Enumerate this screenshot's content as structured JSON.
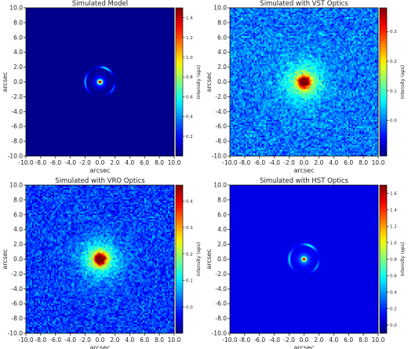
{
  "chart_data": [
    {
      "type": "heatmap",
      "title": "Simulated Model",
      "xlabel": "arcsec",
      "ylabel": "arcsec",
      "colorbar_label": "Intensity (eps)",
      "xlim": [
        -10,
        10
      ],
      "ylim": [
        -10,
        10
      ],
      "xticks": [
        "-10.0",
        "-8.0",
        "-6.0",
        "-4.0",
        "-2.0",
        "0.0",
        "2.0",
        "4.0",
        "6.0",
        "8.0",
        "10.0"
      ],
      "yticks": [
        "10.0",
        "8.0",
        "6.0",
        "4.0",
        "2.0",
        "0.0",
        "-2.0",
        "-4.0",
        "-6.0",
        "-8.0",
        "-10.0"
      ],
      "colorbar_range": [
        0,
        1.5
      ],
      "colorbar_ticks": [
        "1.4",
        "1.2",
        "1.0",
        "0.8",
        "0.6",
        "0.4",
        "0.2"
      ],
      "colorbar_values": [
        1.4,
        1.2,
        1.0,
        0.8,
        0.6,
        0.4,
        0.2
      ],
      "source": "lensed",
      "noise": 0.0,
      "background": 0.02
    },
    {
      "type": "heatmap",
      "title": "Simulated with VST Optics",
      "xlabel": "arcsec",
      "ylabel": "arcsec",
      "colorbar_label": "Intensity (eps)",
      "xlim": [
        -10,
        10
      ],
      "ylim": [
        -10,
        10
      ],
      "xticks": [
        "-10.0",
        "-8.0",
        "-6.0",
        "-4.0",
        "-2.0",
        "0.0",
        "2.0",
        "4.0",
        "6.0",
        "8.0",
        "10.0"
      ],
      "yticks": [
        "10.0",
        "8.0",
        "6.0",
        "4.0",
        "2.0",
        "0.0",
        "-2.0",
        "-4.0",
        "-6.0",
        "-8.0",
        "-10.0"
      ],
      "colorbar_range": [
        -0.12,
        0.38
      ],
      "colorbar_ticks": [
        "0.3",
        "0.2",
        "0.1",
        "0.0"
      ],
      "colorbar_values": [
        0.3,
        0.2,
        0.1,
        0.0
      ],
      "source": "blob",
      "noise": 0.04,
      "background": 0.0
    },
    {
      "type": "heatmap",
      "title": "Simulated with VRO Optics",
      "xlabel": "arcsec",
      "ylabel": "arcsec",
      "colorbar_label": "Intensity (eps)",
      "xlim": [
        -10,
        10
      ],
      "ylim": [
        -10,
        10
      ],
      "xticks": [
        "-10.0",
        "-8.0",
        "-6.0",
        "-4.0",
        "-2.0",
        "0.0",
        "2.0",
        "4.0",
        "6.0",
        "8.0",
        "10.0"
      ],
      "yticks": [
        "10.0",
        "8.0",
        "6.0",
        "4.0",
        "2.0",
        "0.0",
        "-2.0",
        "-4.0",
        "-6.0",
        "-8.0",
        "-10.0"
      ],
      "colorbar_range": [
        -0.1,
        0.46
      ],
      "colorbar_ticks": [
        "0.4",
        "0.3",
        "0.2",
        "0.1",
        "0.0"
      ],
      "colorbar_values": [
        0.4,
        0.3,
        0.2,
        0.1,
        0.0
      ],
      "source": "blob",
      "noise": 0.045,
      "background": 0.0
    },
    {
      "type": "heatmap",
      "title": "Simulated with HST Optics",
      "xlabel": "arcsec",
      "ylabel": "arcsec",
      "colorbar_label": "Intensity (eps)",
      "xlim": [
        -10,
        10
      ],
      "ylim": [
        -10,
        10
      ],
      "xticks": [
        "-10.0",
        "-8.0",
        "-6.0",
        "-4.0",
        "-2.0",
        "0.0",
        "2.0",
        "4.0",
        "6.0",
        "8.0",
        "10.0"
      ],
      "yticks": [
        "10.0",
        "8.0",
        "6.0",
        "4.0",
        "2.0",
        "0.0",
        "-2.0",
        "-4.0",
        "-6.0",
        "-8.0",
        "-10.0"
      ],
      "colorbar_range": [
        -0.1,
        1.7
      ],
      "colorbar_ticks": [
        "1.6",
        "1.4",
        "1.2",
        "1.0",
        "0.8",
        "0.6",
        "0.4",
        "0.2",
        "0.0"
      ],
      "colorbar_values": [
        1.6,
        1.4,
        1.2,
        1.0,
        0.8,
        0.6,
        0.4,
        0.2,
        0.0
      ],
      "source": "lensed",
      "noise": 0.006,
      "background": 0.08
    }
  ]
}
